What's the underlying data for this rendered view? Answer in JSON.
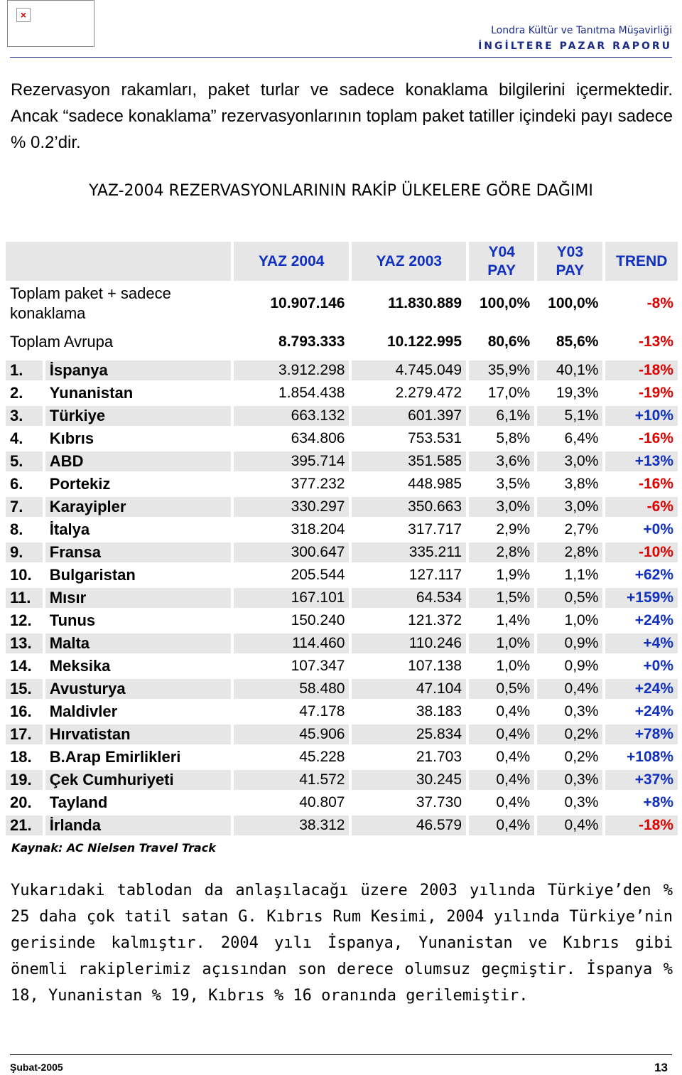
{
  "header": {
    "office": "Londra Kültür ve Tanıtma Müşavirliği",
    "report": "İNGİLTERE PAZAR RAPORU"
  },
  "intro": "Rezervasyon rakamları, paket turlar ve sadece konaklama bilgilerini içermektedir. Ancak “sadece konaklama” rezervasyonlarının toplam paket tatiller içindeki payı sadece % 0.2’dir.",
  "table_title": "YAZ-2004 REZERVASYONLARININ RAKİP ÜLKELERE GÖRE DAĞIMI",
  "table": {
    "columns": [
      "YAZ 2004",
      "YAZ 2003",
      "Y04 PAY",
      "Y03 PAY",
      "TREND"
    ],
    "total_rows": [
      [
        "Toplam paket + sadece konaklama",
        "10.907.146",
        "11.830.889",
        "100,0%",
        "100,0%",
        "-8%"
      ],
      [
        "Toplam Avrupa",
        "8.793.333",
        "10.122.995",
        "80,6%",
        "85,6%",
        "-13%"
      ]
    ],
    "rows": [
      [
        "1.",
        "İspanya",
        "3.912.298",
        "4.745.049",
        "35,9%",
        "40,1%",
        "-18%"
      ],
      [
        "2.",
        "Yunanistan",
        "1.854.438",
        "2.279.472",
        "17,0%",
        "19,3%",
        "-19%"
      ],
      [
        "3.",
        "Türkiye",
        "663.132",
        "601.397",
        "6,1%",
        "5,1%",
        "+10%"
      ],
      [
        "4.",
        "Kıbrıs",
        "634.806",
        "753.531",
        "5,8%",
        "6,4%",
        "-16%"
      ],
      [
        "5.",
        "ABD",
        "395.714",
        "351.585",
        "3,6%",
        "3,0%",
        "+13%"
      ],
      [
        "6.",
        "Portekiz",
        "377.232",
        "448.985",
        "3,5%",
        "3,8%",
        "-16%"
      ],
      [
        "7.",
        "Karayipler",
        "330.297",
        "350.663",
        "3,0%",
        "3,0%",
        "-6%"
      ],
      [
        "8.",
        "İtalya",
        "318.204",
        "317.717",
        "2,9%",
        "2,7%",
        "+0%"
      ],
      [
        "9.",
        "Fransa",
        "300.647",
        "335.211",
        "2,8%",
        "2,8%",
        "-10%"
      ],
      [
        "10.",
        "Bulgaristan",
        "205.544",
        "127.117",
        "1,9%",
        "1,1%",
        "+62%"
      ],
      [
        "11.",
        "Mısır",
        "167.101",
        "64.534",
        "1,5%",
        "0,5%",
        "+159%"
      ],
      [
        "12.",
        "Tunus",
        "150.240",
        "121.372",
        "1,4%",
        "1,0%",
        "+24%"
      ],
      [
        "13.",
        "Malta",
        "114.460",
        "110.246",
        "1,0%",
        "0,9%",
        "+4%"
      ],
      [
        "14.",
        "Meksika",
        "107.347",
        "107.138",
        "1,0%",
        "0,9%",
        "+0%"
      ],
      [
        "15.",
        "Avusturya",
        "58.480",
        "47.104",
        "0,5%",
        "0,4%",
        "+24%"
      ],
      [
        "16.",
        "Maldivler",
        "47.178",
        "38.183",
        "0,4%",
        "0,3%",
        "+24%"
      ],
      [
        "17.",
        "Hırvatistan",
        "45.906",
        "25.834",
        "0,4%",
        "0,2%",
        "+78%"
      ],
      [
        "18.",
        "B.Arap Emirlikleri",
        "45.228",
        "21.703",
        "0,4%",
        "0,2%",
        "+108%"
      ],
      [
        "19.",
        "Çek Cumhuriyeti",
        "41.572",
        "30.245",
        "0,4%",
        "0,3%",
        "+37%"
      ],
      [
        "20.",
        "Tayland",
        "40.807",
        "37.730",
        "0,4%",
        "0,3%",
        "+8%"
      ],
      [
        "21.",
        "İrlanda",
        "38.312",
        "46.579",
        "0,4%",
        "0,4%",
        "-18%"
      ]
    ]
  },
  "source": "Kaynak: AC Nielsen Travel Track",
  "conclusion": "Yukarıdaki tablodan da anlaşılacağı üzere 2003 yılında Türkiye’den % 25 daha çok tatil satan G. Kıbrıs Rum Kesimi, 2004 yılında Türkiye’nin gerisinde kalmıştır. 2004 yılı İspanya, Yunanistan ve Kıbrıs gibi önemli rakiplerimiz açısından son derece olumsuz geçmiştir. İspanya % 18, Yunanistan % 19, Kıbrıs % 16 oranında gerilemiştir.",
  "footer": {
    "date": "Şubat-2005",
    "page": "13"
  }
}
